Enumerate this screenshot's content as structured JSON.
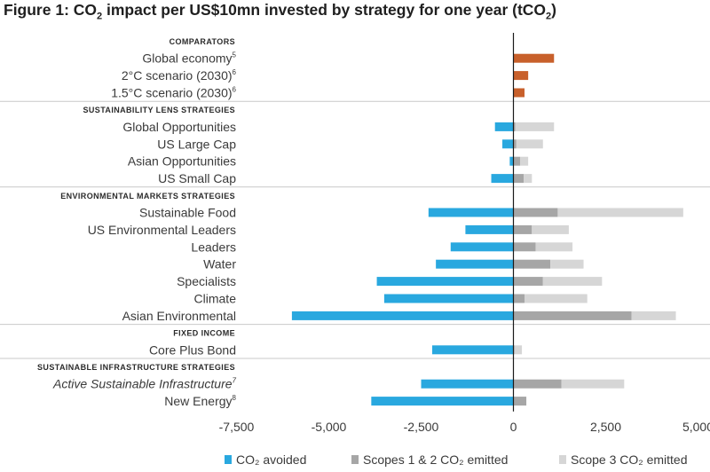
{
  "chart_data": {
    "type": "bar",
    "orientation": "horizontal",
    "stacked": true,
    "title_pre": "Figure 1: CO",
    "title_sub": "2",
    "title_post": " impact per US$10mn invested by strategy for one year (tCO",
    "title_end": "2)",
    "xlim": [
      -7500,
      5000
    ],
    "xticks": [
      -7500,
      -5000,
      -2500,
      0,
      2500,
      5000
    ],
    "xtick_labels": [
      "-7,500",
      "-5,000",
      "-2,500",
      "0",
      "2,500",
      "5,000"
    ],
    "colors": {
      "avoided": "#29a8df",
      "scopes12": "#a6a6a6",
      "scope3": "#d6d6d6",
      "comparator": "#c8602b"
    },
    "legend": [
      {
        "key": "avoided",
        "label": "CO₂ avoided"
      },
      {
        "key": "scopes12",
        "label": "Scopes 1 & 2 CO₂ emitted"
      },
      {
        "key": "scope3",
        "label": "Scope 3 CO₂ emitted"
      }
    ],
    "sections": [
      {
        "label": "COMPARATORS",
        "rows": [
          {
            "label": "Global economy",
            "sup": "5",
            "italic": false,
            "comparator": 1100
          },
          {
            "label": "2°C scenario (2030)",
            "sup": "6",
            "italic": false,
            "comparator": 400
          },
          {
            "label": "1.5°C scenario (2030)",
            "sup": "6",
            "italic": false,
            "comparator": 300
          }
        ]
      },
      {
        "label": "SUSTAINABILITY LENS STRATEGIES",
        "rows": [
          {
            "label": "Global Opportunities",
            "sup": "",
            "italic": false,
            "avoided": -500,
            "scopes12": 50,
            "scope3": 1050
          },
          {
            "label": "US Large Cap",
            "sup": "",
            "italic": false,
            "avoided": -300,
            "scopes12": 80,
            "scope3": 720
          },
          {
            "label": "Asian Opportunities",
            "sup": "",
            "italic": false,
            "avoided": -100,
            "scopes12": 180,
            "scope3": 220
          },
          {
            "label": "US Small Cap",
            "sup": "",
            "italic": false,
            "avoided": -600,
            "scopes12": 280,
            "scope3": 220
          }
        ]
      },
      {
        "label": "ENVIRONMENTAL MARKETS STRATEGIES",
        "rows": [
          {
            "label": "Sustainable Food",
            "sup": "",
            "italic": false,
            "avoided": -2300,
            "scopes12": 1200,
            "scope3": 3400
          },
          {
            "label": "US Environmental Leaders",
            "sup": "",
            "italic": false,
            "avoided": -1300,
            "scopes12": 500,
            "scope3": 1000
          },
          {
            "label": "Leaders",
            "sup": "",
            "italic": false,
            "avoided": -1700,
            "scopes12": 600,
            "scope3": 1000
          },
          {
            "label": "Water",
            "sup": "",
            "italic": false,
            "avoided": -2100,
            "scopes12": 1000,
            "scope3": 900
          },
          {
            "label": "Specialists",
            "sup": "",
            "italic": false,
            "avoided": -3700,
            "scopes12": 800,
            "scope3": 1600
          },
          {
            "label": "Climate",
            "sup": "",
            "italic": false,
            "avoided": -3500,
            "scopes12": 300,
            "scope3": 1700
          },
          {
            "label": "Asian Environmental",
            "sup": "",
            "italic": false,
            "avoided": -6000,
            "scopes12": 3200,
            "scope3": 1200
          }
        ]
      },
      {
        "label": "FIXED INCOME",
        "rows": [
          {
            "label": "Core Plus Bond",
            "sup": "",
            "italic": false,
            "avoided": -2200,
            "scopes12": 30,
            "scope3": 200
          }
        ]
      },
      {
        "label": "SUSTAINABLE INFRASTRUCTURE STRATEGIES",
        "rows": [
          {
            "label": "Active Sustainable Infrastructure",
            "sup": "7",
            "italic": true,
            "avoided": -2500,
            "scopes12": 1300,
            "scope3": 1700
          },
          {
            "label": "New Energy",
            "sup": "8",
            "italic": false,
            "avoided": -3850,
            "scopes12": 350,
            "scope3": 0
          }
        ]
      }
    ]
  }
}
